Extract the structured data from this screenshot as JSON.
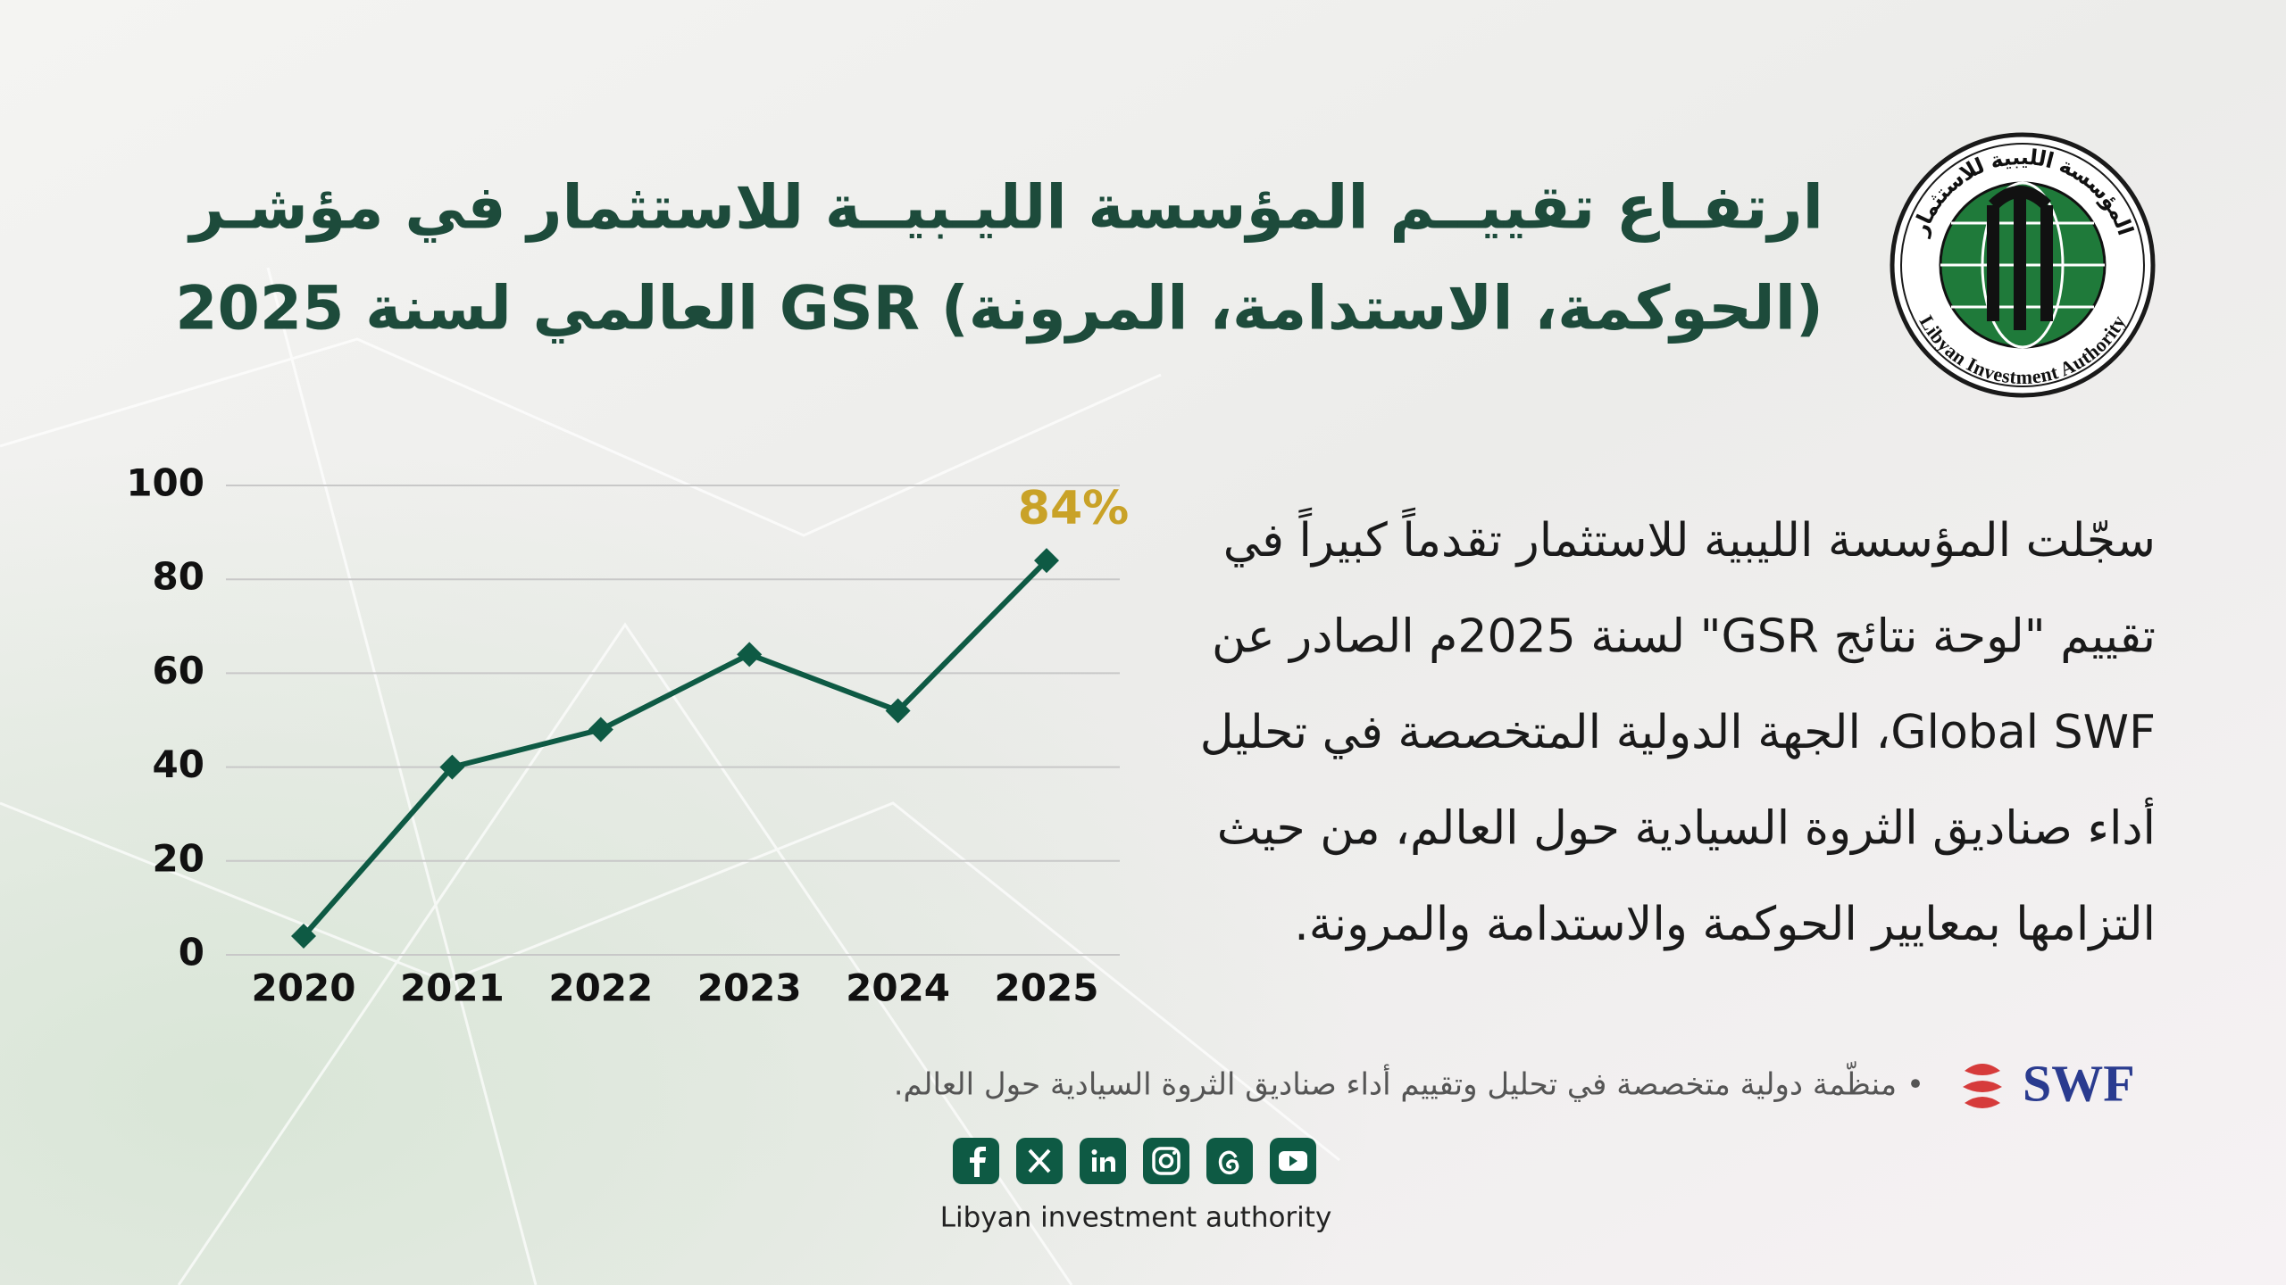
{
  "header": {
    "title_lines": [
      "ارتفـاع تقييــم المؤسسة الليـبيــة للاستثمار في مؤشـر",
      "(الحوكمة، الاستدامة، المرونة) GSR العالمي لسنة 2025"
    ]
  },
  "logo": {
    "text_ar": "المؤسسة الليبية للاستثمار",
    "text_en": "Libyan Investment Authority"
  },
  "chart_data": {
    "type": "line",
    "categories": [
      "2020",
      "2021",
      "2022",
      "2023",
      "2024",
      "2025"
    ],
    "series": [
      {
        "color": "#0e5a44",
        "values": [
          4,
          40,
          48,
          64,
          52,
          84
        ],
        "value_labels": [
          null,
          null,
          null,
          null,
          null,
          "84%"
        ],
        "label_color": "#c9a227"
      }
    ],
    "ylim": [
      0,
      100
    ],
    "yticks": [
      0,
      20,
      40,
      60,
      80,
      100
    ],
    "grid": true
  },
  "body": {
    "lines": [
      "سجّلت المؤسسة الليبية للاستثمار تقدماً كبيراً في",
      "تقييم \"لوحة نتائج GSR\" لسنة 2025م الصادر عن",
      "Global SWF، الجهة الدولية المتخصصة في تحليل",
      "أداء صناديق الثروة السيادية حول العالم، من حيث",
      "التزامها بمعايير الحوكمة والاستدامة والمرونة."
    ]
  },
  "note": {
    "brand": "SWF",
    "text": "• منظّمة دولية متخصصة في تحليل وتقييم أداء صناديق الثروة السيادية حول العالم."
  },
  "footer": {
    "name": "Libyan investment authority"
  }
}
